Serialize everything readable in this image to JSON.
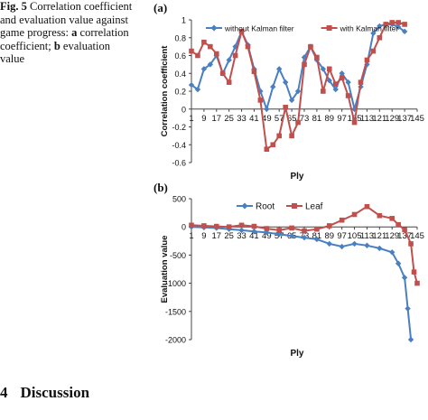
{
  "caption": {
    "fig": "Fig. 5",
    "line1": "Correlation coefficient",
    "line2": "and evaluation value against",
    "line3": "game progress:",
    "a_mark": "a",
    "a_text": "correlation",
    "line4": "coefficient;",
    "b_mark": "b",
    "b_text": "evaluation value"
  },
  "section": {
    "number": "4",
    "title": "Discussion"
  },
  "colors": {
    "blue": "#4a7fc1",
    "red": "#c0504d",
    "axis": "#444444"
  },
  "chart_data": [
    {
      "panel": "(a)",
      "type": "line",
      "xlabel": "Ply",
      "ylabel": "Correlation coefficient",
      "ylim": [
        -0.6,
        1
      ],
      "yticks": [
        "1",
        "0.8",
        "0.6",
        "0.4",
        "0.2",
        "0",
        "-0.2",
        "-0.4",
        "-0.6"
      ],
      "xticks": [
        "1",
        "9",
        "17",
        "25",
        "33",
        "41",
        "49",
        "57",
        "65",
        "73",
        "81",
        "89",
        "97",
        "105",
        "113",
        "121",
        "129",
        "137",
        "145"
      ],
      "xlim": [
        1,
        145
      ],
      "legend_position": "top",
      "series": [
        {
          "name": "without Kalman filter",
          "color": "#4a7fc1",
          "marker": "diamond",
          "x": [
            1,
            5,
            9,
            13,
            17,
            21,
            25,
            29,
            33,
            37,
            41,
            45,
            49,
            53,
            57,
            61,
            65,
            69,
            73,
            77,
            81,
            85,
            89,
            93,
            97,
            101,
            105,
            109,
            113,
            117,
            121,
            125,
            129,
            133,
            137
          ],
          "y": [
            0.27,
            0.22,
            0.45,
            0.5,
            0.6,
            0.4,
            0.55,
            0.7,
            0.87,
            0.72,
            0.45,
            0.2,
            0.0,
            0.25,
            0.45,
            0.3,
            0.1,
            0.2,
            0.58,
            0.7,
            0.55,
            0.45,
            0.32,
            0.22,
            0.4,
            0.3,
            0.0,
            0.25,
            0.5,
            0.85,
            0.93,
            0.95,
            0.95,
            0.92,
            0.87
          ]
        },
        {
          "name": "with Kalman filter",
          "color": "#c0504d",
          "marker": "square",
          "x": [
            1,
            5,
            9,
            13,
            17,
            21,
            25,
            29,
            33,
            37,
            41,
            45,
            49,
            53,
            57,
            61,
            65,
            69,
            73,
            77,
            81,
            85,
            89,
            93,
            97,
            101,
            105,
            109,
            113,
            117,
            121,
            125,
            129,
            133,
            137
          ],
          "y": [
            0.65,
            0.6,
            0.75,
            0.7,
            0.62,
            0.4,
            0.3,
            0.6,
            0.87,
            0.7,
            0.42,
            0.1,
            -0.45,
            -0.4,
            -0.3,
            0.02,
            -0.3,
            -0.15,
            0.5,
            0.7,
            0.58,
            0.2,
            0.45,
            0.28,
            0.35,
            0.15,
            -0.15,
            0.3,
            0.55,
            0.65,
            0.8,
            0.95,
            0.97,
            0.97,
            0.95
          ]
        }
      ]
    },
    {
      "panel": "(b)",
      "type": "line",
      "xlabel": "Ply",
      "ylabel": "Evaluation value",
      "ylim": [
        -2000,
        500
      ],
      "yticks": [
        "500",
        "0",
        "-500",
        "-1000",
        "-1500",
        "-2000"
      ],
      "xticks": [
        "1",
        "9",
        "17",
        "25",
        "33",
        "41",
        "49",
        "57",
        "65",
        "73",
        "81",
        "89",
        "97",
        "105",
        "113",
        "121",
        "129",
        "137",
        "145"
      ],
      "xlim": [
        1,
        145
      ],
      "legend_position": "top",
      "series": [
        {
          "name": "Root",
          "color": "#4a7fc1",
          "marker": "diamond",
          "x": [
            1,
            9,
            17,
            25,
            33,
            41,
            49,
            57,
            65,
            73,
            81,
            89,
            97,
            105,
            113,
            121,
            129,
            133,
            137,
            139,
            141
          ],
          "y": [
            0,
            -10,
            -20,
            -40,
            -60,
            -80,
            -100,
            -130,
            -160,
            -190,
            -220,
            -300,
            -350,
            -300,
            -330,
            -380,
            -450,
            -650,
            -900,
            -1450,
            -2000
          ]
        },
        {
          "name": "Leaf",
          "color": "#c0504d",
          "marker": "square",
          "x": [
            1,
            9,
            17,
            25,
            33,
            41,
            49,
            57,
            65,
            73,
            81,
            89,
            97,
            105,
            113,
            121,
            129,
            133,
            137,
            141,
            143,
            145
          ],
          "y": [
            30,
            20,
            10,
            0,
            30,
            10,
            -30,
            -60,
            -20,
            -70,
            -40,
            20,
            120,
            220,
            360,
            200,
            150,
            40,
            -50,
            -300,
            -800,
            -1000
          ]
        }
      ]
    }
  ]
}
